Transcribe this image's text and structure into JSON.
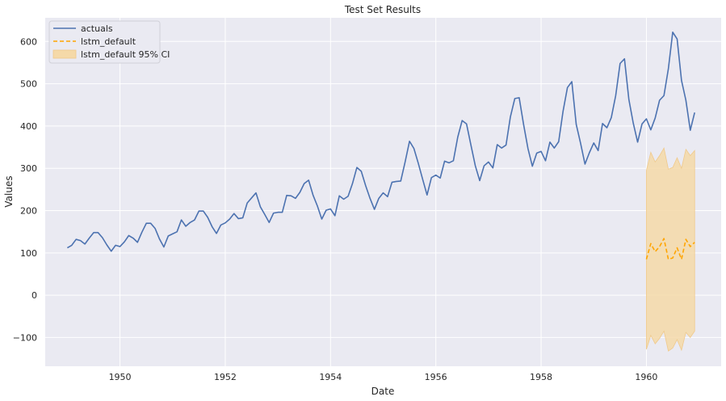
{
  "chart_data": {
    "type": "line",
    "title": "Test Set Results",
    "xlabel": "Date",
    "ylabel": "Values",
    "xlim": [
      1948.58,
      1961.42
    ],
    "ylim": [
      -168,
      656
    ],
    "xticks": [
      1950,
      1952,
      1954,
      1956,
      1958,
      1960
    ],
    "yticks": [
      -100,
      0,
      100,
      200,
      300,
      400,
      500,
      600
    ],
    "grid": true,
    "legend_position": "top-left",
    "colors": {
      "background": "#eaeaf2",
      "grid": "#ffffff",
      "actuals": "#4c72b0",
      "forecast": "#ffa500",
      "ci_fill": "#f5d9a8"
    },
    "series": [
      {
        "name": "actuals",
        "style": "solid",
        "x_start": "1949-01",
        "frequency": "monthly",
        "values": [
          112,
          118,
          132,
          129,
          121,
          135,
          148,
          148,
          136,
          119,
          104,
          118,
          115,
          126,
          141,
          135,
          125,
          149,
          170,
          170,
          158,
          133,
          114,
          140,
          145,
          150,
          178,
          163,
          172,
          178,
          199,
          199,
          184,
          162,
          146,
          166,
          171,
          180,
          193,
          181,
          183,
          218,
          230,
          242,
          209,
          191,
          172,
          194,
          196,
          196,
          236,
          235,
          229,
          243,
          264,
          272,
          237,
          211,
          180,
          201,
          204,
          188,
          235,
          227,
          234,
          264,
          302,
          293,
          259,
          229,
          203,
          229,
          242,
          233,
          267,
          269,
          270,
          315,
          364,
          347,
          312,
          274,
          237,
          278,
          284,
          277,
          317,
          313,
          318,
          374,
          413,
          405,
          355,
          306,
          271,
          306,
          315,
          301,
          356,
          348,
          355,
          422,
          465,
          467,
          404,
          347,
          305,
          336,
          340,
          318,
          362,
          348,
          363,
          435,
          491,
          505,
          404,
          359,
          310,
          337,
          360,
          342,
          406,
          396,
          420,
          472,
          548,
          559,
          463,
          407,
          362,
          405,
          417,
          391,
          419,
          461,
          472,
          535,
          622,
          606,
          508,
          461,
          390,
          432
        ]
      },
      {
        "name": "lstm_default",
        "style": "dashed",
        "x_start": "1960-01",
        "frequency": "monthly",
        "values": [
          85,
          122,
          103,
          115,
          134,
          85,
          88,
          112,
          85,
          132,
          115,
          125
        ]
      },
      {
        "name": "lstm_default 95% CI",
        "style": "band",
        "x_start": "1960-01",
        "frequency": "monthly",
        "lower": [
          -128,
          -95,
          -115,
          -102,
          -85,
          -132,
          -125,
          -105,
          -130,
          -88,
          -100,
          -85
        ],
        "upper": [
          295,
          338,
          315,
          330,
          348,
          298,
          302,
          325,
          300,
          345,
          330,
          342
        ]
      }
    ]
  }
}
